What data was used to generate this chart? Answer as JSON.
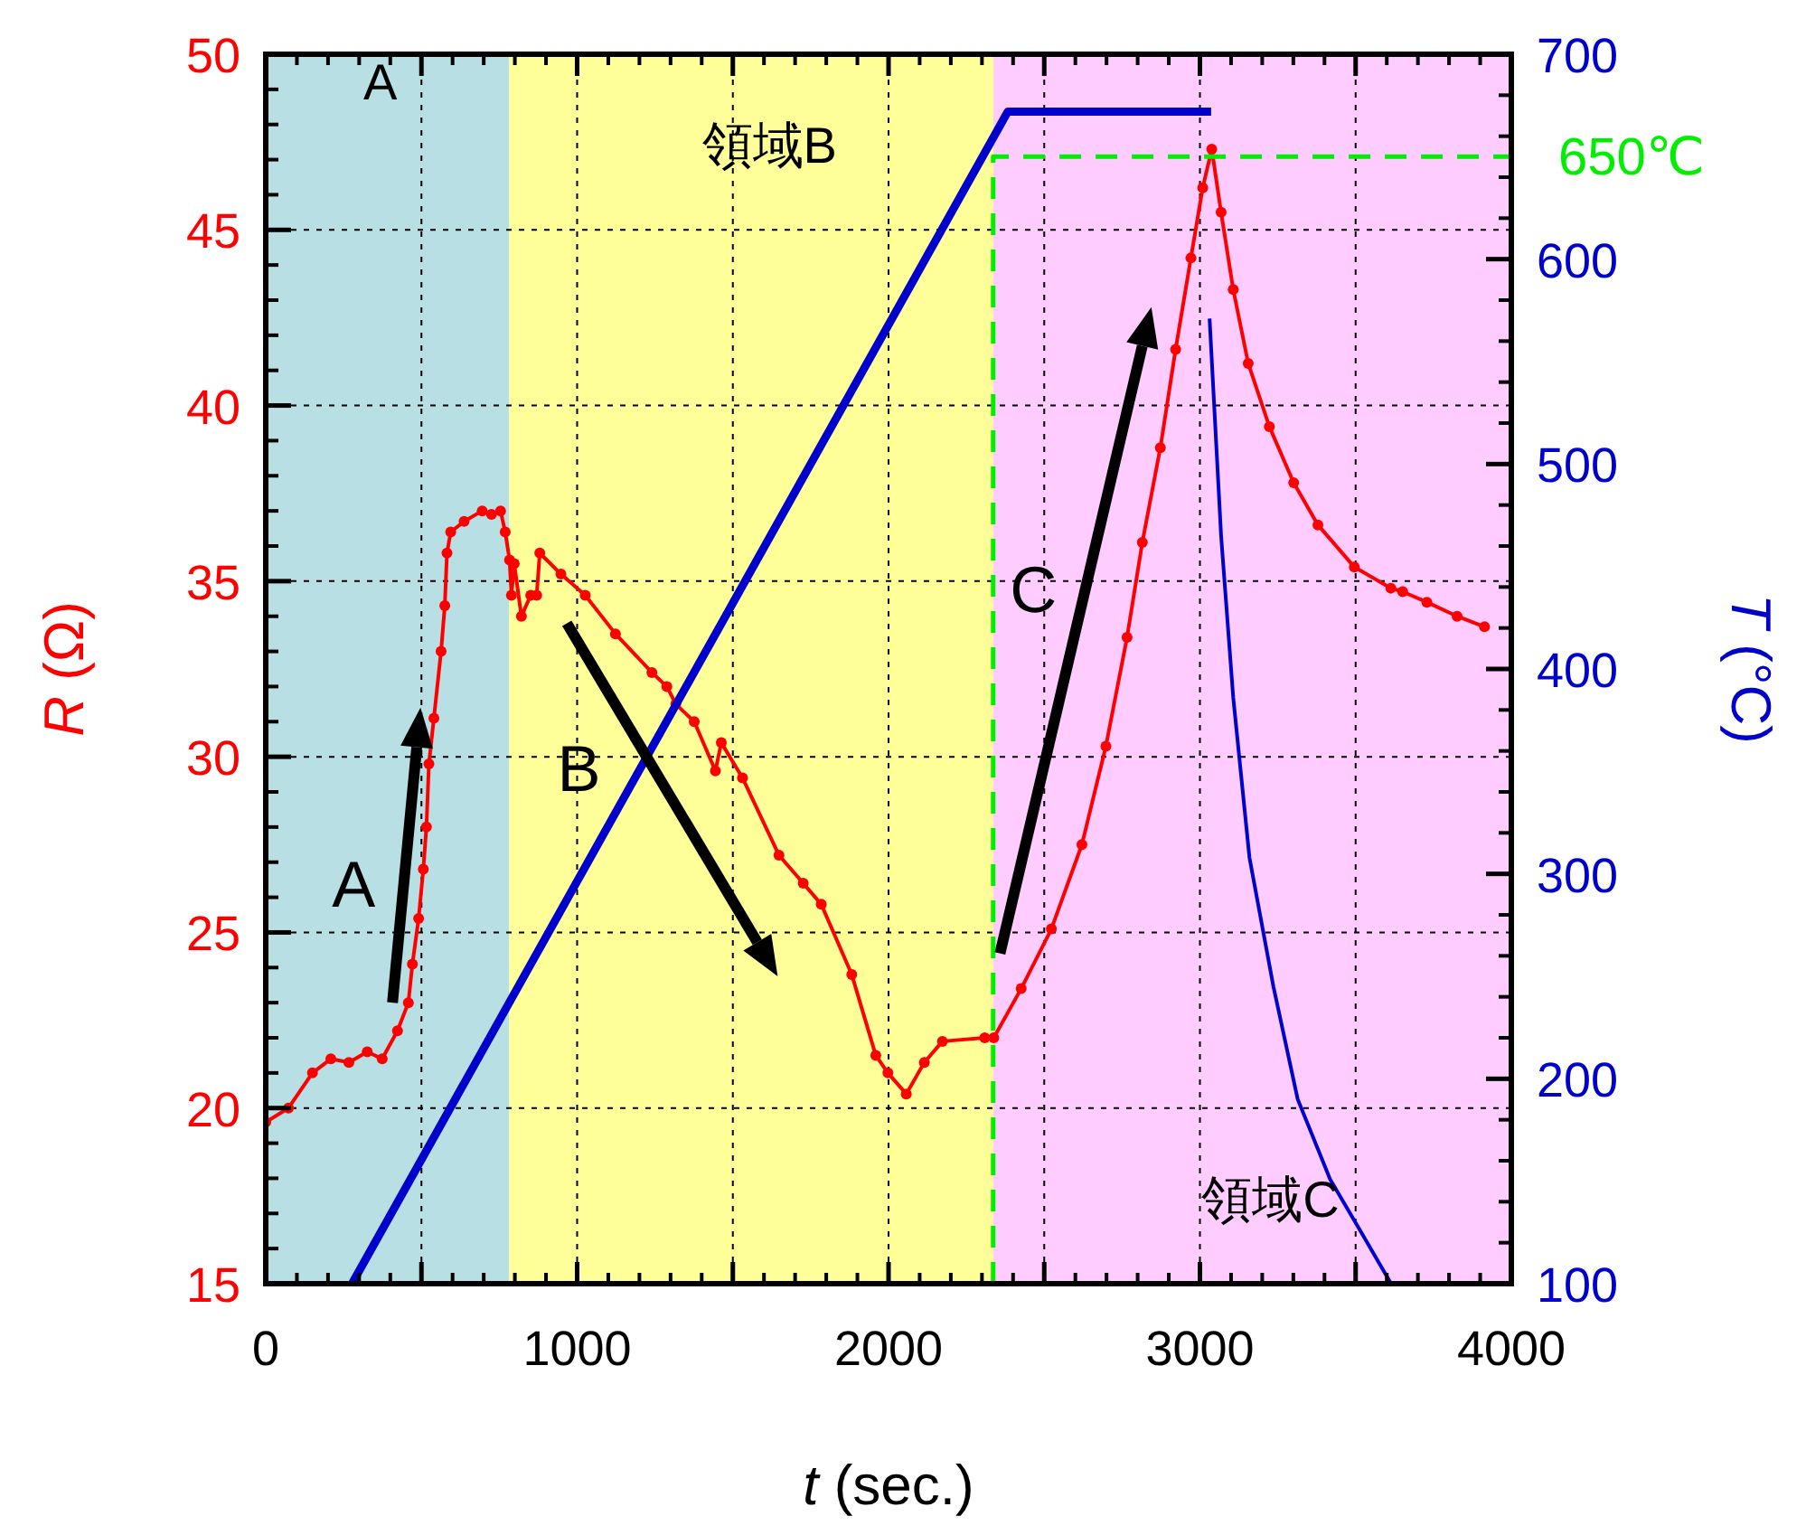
{
  "chart_data": {
    "type": "line",
    "xlabel": "t (sec.)",
    "ylabel": "R (Ω)",
    "y2label": "T (°C)",
    "xlim": [
      0,
      4000
    ],
    "xticks": [
      0,
      {
        "value": 500,
        "label": null
      },
      1000,
      {
        "value": 1500,
        "label": null
      },
      2000,
      {
        "value": 2500,
        "label": null
      },
      3000,
      {
        "value": 3500,
        "label": null
      },
      4000
    ],
    "ylim": [
      15,
      50
    ],
    "yticks": [
      15,
      20,
      25,
      30,
      35,
      40,
      45,
      50
    ],
    "y2lim": [
      100,
      700
    ],
    "y2ticks": [
      100,
      200,
      300,
      400,
      500,
      600,
      700
    ],
    "grid": true,
    "series": [
      {
        "color": "#ff0000",
        "marker": "circle",
        "x": [
          0,
          73,
          150,
          209,
          267,
          326,
          374,
          423,
          458,
          471,
          491,
          506,
          516,
          524,
          540,
          563,
          575,
          582,
          594,
          637,
          695,
          725,
          754,
          769,
          783,
          789,
          798,
          821,
          851,
          870,
          880,
          948,
          1026,
          1123,
          1240,
          1288,
          1317,
          1376,
          1444,
          1463,
          1531,
          1648,
          1726,
          1784,
          1882,
          1959,
          1998,
          2057,
          2115,
          2173,
          2309,
          2338,
          2426,
          2523,
          2621,
          2698,
          2766,
          2815,
          2873,
          2922,
          2971,
          3009,
          3038,
          3068,
          3107,
          3155,
          3223,
          3301,
          3379,
          3496,
          3613,
          3651,
          3729,
          3826,
          3914
        ],
        "values": [
          19.6,
          20.0,
          21.0,
          21.4,
          21.3,
          21.6,
          21.4,
          22.2,
          23.0,
          24.1,
          25.4,
          26.8,
          28.0,
          29.8,
          31.1,
          33.0,
          34.3,
          35.8,
          36.4,
          36.7,
          37.0,
          36.9,
          37.0,
          36.4,
          35.6,
          34.6,
          35.5,
          34.0,
          34.6,
          34.6,
          35.8,
          35.2,
          34.6,
          33.5,
          32.4,
          32.0,
          31.5,
          31.0,
          29.6,
          30.4,
          29.4,
          27.2,
          26.4,
          25.8,
          23.8,
          21.5,
          21.0,
          20.4,
          21.3,
          21.9,
          22.0,
          22.0,
          23.4,
          25.1,
          27.5,
          30.3,
          33.4,
          36.1,
          38.8,
          41.6,
          44.2,
          46.2,
          47.3,
          45.5,
          43.3,
          41.2,
          39.4,
          37.8,
          36.6,
          35.4,
          34.8,
          34.7,
          34.4,
          34.0,
          33.7
        ]
      },
      {
        "color": "#0000cc",
        "axis": "y2",
        "x": [
          277,
          2383,
          3036
        ],
        "values": [
          100,
          672,
          672
        ]
      },
      {
        "color": "#0000cc",
        "axis": "y2",
        "x": [
          3031,
          3068,
          3107,
          3159,
          3236,
          3314,
          3418,
          3522,
          3614
        ],
        "values": [
          571,
          465,
          386,
          308,
          245,
          190,
          151,
          124,
          100
        ]
      },
      {
        "name": "650℃",
        "color": "#00ee00",
        "axis": "y2",
        "line_style": "dashed",
        "x": [
          2336,
          2336,
          4000
        ],
        "values": [
          100,
          650,
          650
        ]
      }
    ],
    "bands": [
      {
        "axis": "x",
        "from": 0,
        "to": 782,
        "label": "A",
        "color": "#b8dfe3"
      },
      {
        "axis": "x",
        "from": 782,
        "to": 2337,
        "label": "領域B",
        "color": "#ffff99"
      },
      {
        "axis": "x",
        "from": 2337,
        "to": 4000,
        "label": "領域C",
        "color": "#ffccff"
      }
    ],
    "annotations": [
      "A",
      "B",
      "C"
    ]
  }
}
